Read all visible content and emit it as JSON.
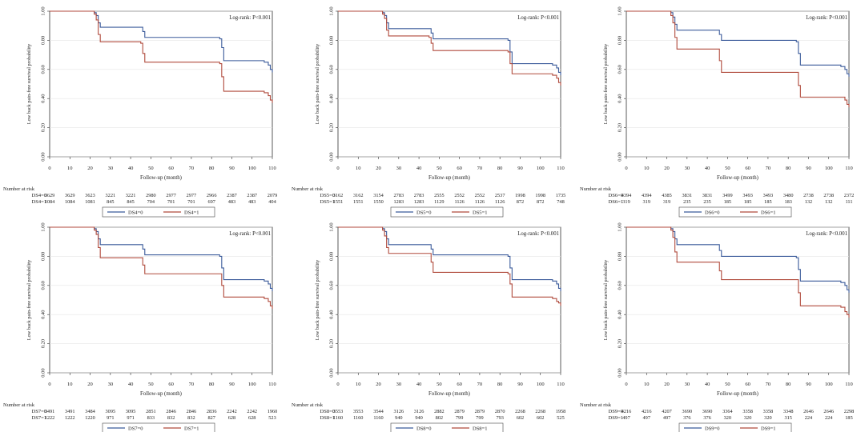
{
  "chart_data": [
    {
      "type": "line",
      "ylabel": "Low back pain-free survival probability",
      "xlabel": "Follow-up (month)",
      "annotation": "Log-rank: P<0.001",
      "xlim": [
        0,
        110
      ],
      "ylim": [
        0,
        1
      ],
      "xticks": [
        "0",
        "10",
        "20",
        "30",
        "40",
        "50",
        "60",
        "70",
        "80",
        "90",
        "100",
        "110"
      ],
      "yticks": [
        "0.00",
        "0.20",
        "0.40",
        "0.60",
        "0.80",
        "1.00"
      ],
      "risk_title": "Number at risk",
      "series": [
        {
          "name": "DS4=0",
          "color": "#3a5a9a",
          "x": [
            0,
            18,
            22,
            23,
            24,
            25,
            45,
            46,
            47,
            84,
            85,
            86,
            106,
            108,
            109,
            110
          ],
          "y": [
            1.0,
            1.0,
            0.99,
            0.97,
            0.92,
            0.89,
            0.89,
            0.86,
            0.82,
            0.81,
            0.75,
            0.66,
            0.65,
            0.63,
            0.6,
            0.58
          ],
          "risk": [
            "3629",
            "3629",
            "3623",
            "3221",
            "3221",
            "2980",
            "2977",
            "2977",
            "2966",
            "2387",
            "2387",
            "2079"
          ]
        },
        {
          "name": "DS4=1",
          "color": "#b04a3c",
          "x": [
            0,
            18,
            22,
            23,
            24,
            25,
            45,
            46,
            47,
            84,
            85,
            86,
            106,
            108,
            109,
            110
          ],
          "y": [
            1.0,
            1.0,
            0.98,
            0.94,
            0.84,
            0.79,
            0.78,
            0.71,
            0.65,
            0.64,
            0.55,
            0.45,
            0.44,
            0.42,
            0.39,
            0.37
          ],
          "risk": [
            "1084",
            "1084",
            "1081",
            "845",
            "845",
            "704",
            "701",
            "701",
            "697",
            "483",
            "483",
            "404"
          ]
        }
      ]
    },
    {
      "type": "line",
      "ylabel": "Low back pain-free survival probability",
      "xlabel": "Follow-up (month)",
      "annotation": "Log-rank: P<0.001",
      "xlim": [
        0,
        110
      ],
      "ylim": [
        0,
        1
      ],
      "xticks": [
        "0",
        "10",
        "20",
        "30",
        "40",
        "50",
        "60",
        "70",
        "80",
        "90",
        "100",
        "110"
      ],
      "yticks": [
        "0.00",
        "0.20",
        "0.40",
        "0.60",
        "0.80",
        "1.00"
      ],
      "risk_title": "Number at risk",
      "series": [
        {
          "name": "DS5=0",
          "color": "#3a5a9a",
          "x": [
            0,
            18,
            22,
            23,
            24,
            25,
            45,
            46,
            47,
            84,
            85,
            86,
            106,
            108,
            109,
            110
          ],
          "y": [
            1.0,
            1.0,
            0.99,
            0.97,
            0.92,
            0.88,
            0.88,
            0.85,
            0.81,
            0.8,
            0.72,
            0.64,
            0.63,
            0.61,
            0.58,
            0.56
          ],
          "risk": [
            "3162",
            "3162",
            "3154",
            "2783",
            "2783",
            "2555",
            "2552",
            "2552",
            "2537",
            "1998",
            "1998",
            "1735"
          ]
        },
        {
          "name": "DS5=1",
          "color": "#b04a3c",
          "x": [
            0,
            18,
            22,
            23,
            24,
            25,
            45,
            46,
            47,
            84,
            85,
            86,
            106,
            108,
            109,
            110
          ],
          "y": [
            1.0,
            1.0,
            0.98,
            0.95,
            0.87,
            0.83,
            0.82,
            0.78,
            0.73,
            0.72,
            0.64,
            0.57,
            0.56,
            0.54,
            0.51,
            0.49
          ],
          "risk": [
            "1551",
            "1551",
            "1550",
            "1283",
            "1283",
            "1129",
            "1126",
            "1126",
            "1126",
            "872",
            "872",
            "748"
          ]
        }
      ]
    },
    {
      "type": "line",
      "ylabel": "Low back pain-free survival probability",
      "xlabel": "Follow-up (month)",
      "annotation": "Log-rank: P<0.001",
      "xlim": [
        0,
        110
      ],
      "ylim": [
        0,
        1
      ],
      "xticks": [
        "0",
        "10",
        "20",
        "30",
        "40",
        "50",
        "60",
        "70",
        "80",
        "90",
        "100",
        "110"
      ],
      "yticks": [
        "0.00",
        "0.20",
        "0.40",
        "0.60",
        "0.80",
        "1.00"
      ],
      "risk_title": "Number at risk",
      "series": [
        {
          "name": "DS6=0",
          "color": "#3a5a9a",
          "x": [
            0,
            18,
            22,
            23,
            24,
            25,
            45,
            46,
            47,
            84,
            85,
            86,
            106,
            108,
            109,
            110
          ],
          "y": [
            1.0,
            1.0,
            0.99,
            0.96,
            0.91,
            0.87,
            0.87,
            0.84,
            0.8,
            0.79,
            0.71,
            0.63,
            0.62,
            0.6,
            0.57,
            0.55
          ],
          "risk": [
            "4394",
            "4394",
            "4385",
            "3831",
            "3831",
            "3499",
            "3493",
            "3493",
            "3480",
            "2738",
            "2738",
            "2372"
          ]
        },
        {
          "name": "DS6=1",
          "color": "#b04a3c",
          "x": [
            0,
            18,
            22,
            23,
            24,
            25,
            45,
            46,
            47,
            84,
            85,
            86,
            106,
            108,
            109,
            110
          ],
          "y": [
            1.0,
            1.0,
            0.97,
            0.92,
            0.82,
            0.74,
            0.74,
            0.66,
            0.58,
            0.58,
            0.49,
            0.41,
            0.41,
            0.39,
            0.36,
            0.34
          ],
          "risk": [
            "319",
            "319",
            "319",
            "235",
            "235",
            "185",
            "185",
            "185",
            "183",
            "132",
            "132",
            "111"
          ]
        }
      ]
    },
    {
      "type": "line",
      "ylabel": "Low back pain-free survival probability",
      "xlabel": "Follow-up (month)",
      "annotation": "Log-rank: P<0.001",
      "xlim": [
        0,
        110
      ],
      "ylim": [
        0,
        1
      ],
      "xticks": [
        "0",
        "10",
        "20",
        "30",
        "40",
        "50",
        "60",
        "70",
        "80",
        "90",
        "100",
        "110"
      ],
      "yticks": [
        "0.00",
        "0.20",
        "0.40",
        "0.60",
        "0.80",
        "1.00"
      ],
      "risk_title": "Number at risk",
      "series": [
        {
          "name": "DS7=0",
          "color": "#3a5a9a",
          "x": [
            0,
            18,
            22,
            23,
            24,
            25,
            45,
            46,
            47,
            84,
            85,
            86,
            106,
            108,
            109,
            110
          ],
          "y": [
            1.0,
            1.0,
            0.99,
            0.97,
            0.92,
            0.88,
            0.88,
            0.85,
            0.81,
            0.8,
            0.72,
            0.64,
            0.63,
            0.61,
            0.58,
            0.56
          ],
          "risk": [
            "3491",
            "3491",
            "3484",
            "3095",
            "3095",
            "2851",
            "2846",
            "2846",
            "2836",
            "2242",
            "2242",
            "1960"
          ]
        },
        {
          "name": "DS7=1",
          "color": "#b04a3c",
          "x": [
            0,
            18,
            22,
            23,
            24,
            25,
            45,
            46,
            47,
            84,
            85,
            86,
            106,
            108,
            109,
            110
          ],
          "y": [
            1.0,
            1.0,
            0.98,
            0.95,
            0.86,
            0.79,
            0.79,
            0.74,
            0.68,
            0.68,
            0.6,
            0.52,
            0.51,
            0.49,
            0.46,
            0.44
          ],
          "risk": [
            "1222",
            "1222",
            "1220",
            "971",
            "971",
            "833",
            "832",
            "832",
            "827",
            "628",
            "628",
            "523"
          ]
        }
      ]
    },
    {
      "type": "line",
      "ylabel": "Low back pain-free survival probability",
      "xlabel": "Follow-up (month)",
      "annotation": "Log-rank: P<0.001",
      "xlim": [
        0,
        110
      ],
      "ylim": [
        0,
        1
      ],
      "xticks": [
        "0",
        "10",
        "20",
        "30",
        "40",
        "50",
        "60",
        "70",
        "80",
        "90",
        "100",
        "110"
      ],
      "yticks": [
        "0.00",
        "0.20",
        "0.40",
        "0.60",
        "0.80",
        "1.00"
      ],
      "risk_title": "Number at risk",
      "series": [
        {
          "name": "DS8=0",
          "color": "#3a5a9a",
          "x": [
            0,
            18,
            22,
            23,
            24,
            25,
            45,
            46,
            47,
            84,
            85,
            86,
            106,
            108,
            109,
            110
          ],
          "y": [
            1.0,
            1.0,
            0.99,
            0.97,
            0.92,
            0.88,
            0.88,
            0.85,
            0.81,
            0.8,
            0.72,
            0.64,
            0.63,
            0.61,
            0.58,
            0.56
          ],
          "risk": [
            "3553",
            "3553",
            "3544",
            "3126",
            "3126",
            "2882",
            "2879",
            "2879",
            "2870",
            "2268",
            "2268",
            "1958"
          ]
        },
        {
          "name": "DS8=1",
          "color": "#b04a3c",
          "x": [
            0,
            18,
            22,
            23,
            24,
            25,
            45,
            46,
            47,
            84,
            85,
            86,
            106,
            108,
            109,
            110
          ],
          "y": [
            1.0,
            1.0,
            0.98,
            0.94,
            0.86,
            0.82,
            0.82,
            0.76,
            0.69,
            0.68,
            0.61,
            0.52,
            0.51,
            0.49,
            0.48,
            0.46
          ],
          "risk": [
            "1160",
            "1160",
            "1160",
            "940",
            "940",
            "802",
            "799",
            "799",
            "793",
            "602",
            "602",
            "525"
          ]
        }
      ]
    },
    {
      "type": "line",
      "ylabel": "Low back pain-free survival probability",
      "xlabel": "Follow-up (month)",
      "annotation": "Log-rank: P<0.001",
      "xlim": [
        0,
        110
      ],
      "ylim": [
        0,
        1
      ],
      "xticks": [
        "0",
        "10",
        "20",
        "30",
        "40",
        "50",
        "60",
        "70",
        "80",
        "90",
        "100",
        "110"
      ],
      "yticks": [
        "0.00",
        "0.20",
        "0.40",
        "0.60",
        "0.80",
        "1.00"
      ],
      "risk_title": "Number at risk",
      "series": [
        {
          "name": "DS9=0",
          "color": "#3a5a9a",
          "x": [
            0,
            18,
            22,
            23,
            24,
            25,
            45,
            46,
            47,
            84,
            85,
            86,
            106,
            108,
            109,
            110
          ],
          "y": [
            1.0,
            1.0,
            0.99,
            0.97,
            0.92,
            0.88,
            0.88,
            0.84,
            0.8,
            0.79,
            0.71,
            0.63,
            0.62,
            0.6,
            0.57,
            0.55
          ],
          "risk": [
            "4216",
            "4216",
            "4207",
            "3690",
            "3690",
            "3364",
            "3358",
            "3358",
            "3348",
            "2646",
            "2646",
            "2298"
          ]
        },
        {
          "name": "DS9=1",
          "color": "#b04a3c",
          "x": [
            0,
            18,
            22,
            23,
            24,
            25,
            45,
            46,
            47,
            84,
            85,
            86,
            106,
            108,
            109,
            110
          ],
          "y": [
            1.0,
            1.0,
            0.98,
            0.93,
            0.83,
            0.76,
            0.76,
            0.7,
            0.64,
            0.64,
            0.55,
            0.46,
            0.45,
            0.42,
            0.4,
            0.38
          ],
          "risk": [
            "497",
            "497",
            "497",
            "376",
            "376",
            "320",
            "320",
            "320",
            "315",
            "224",
            "224",
            "185"
          ]
        }
      ]
    }
  ]
}
